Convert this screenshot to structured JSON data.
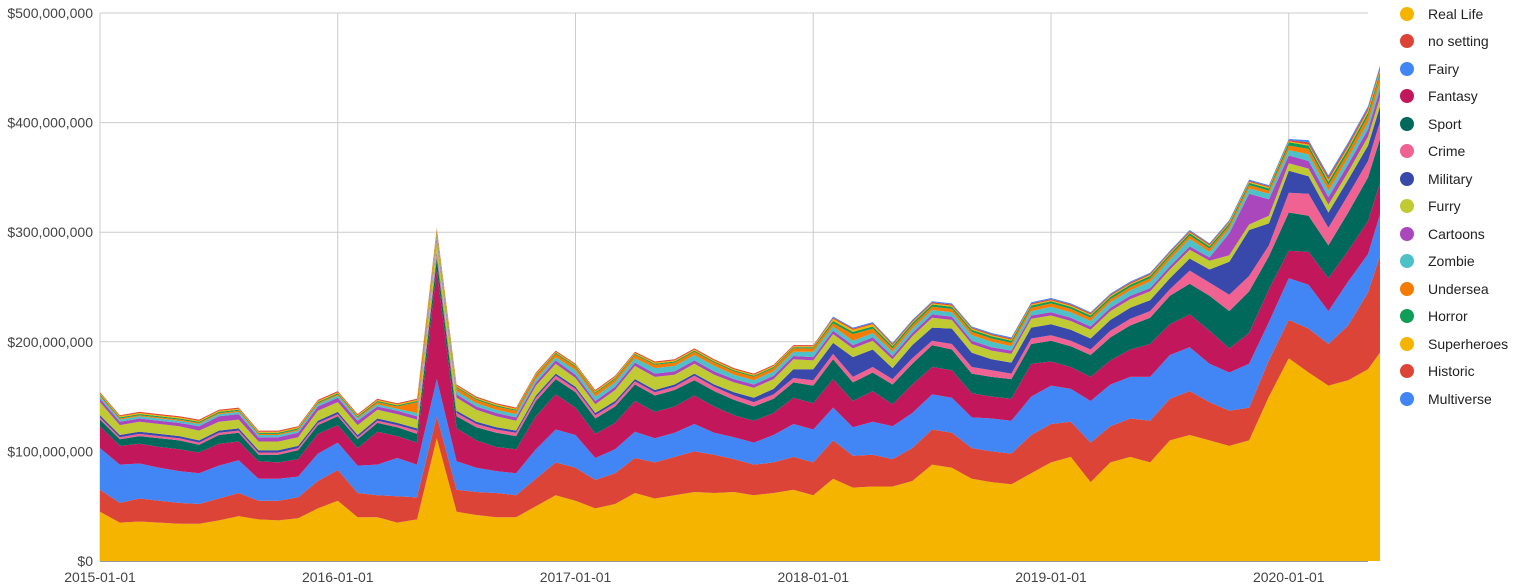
{
  "chart_data": {
    "type": "area",
    "stacked": true,
    "x_start": "2015-01-01",
    "x_end": "2020-05-01",
    "x_step": "month",
    "x_ticks": [
      "2015-01-01",
      "2016-01-01",
      "2017-01-01",
      "2018-01-01",
      "2019-01-01",
      "2020-01-01"
    ],
    "y_ticks": [
      {
        "value": 0,
        "label": "$0"
      },
      {
        "value": 100000000,
        "label": "$100,000,000"
      },
      {
        "value": 200000000,
        "label": "$200,000,000"
      },
      {
        "value": 300000000,
        "label": "$300,000,000"
      },
      {
        "value": 400000000,
        "label": "$400,000,000"
      },
      {
        "value": 500000000,
        "label": "$500,000,000"
      }
    ],
    "ylim": [
      0,
      500000000
    ],
    "grid": true,
    "legend_position": "right",
    "title": "",
    "xlabel": "",
    "ylabel": "",
    "series": [
      {
        "name": "Real Life",
        "color": "#f4b400",
        "values": [
          45,
          35,
          36,
          35,
          34,
          34,
          37,
          41,
          38,
          37,
          39,
          48,
          55,
          40,
          40,
          35,
          38,
          112,
          45,
          42,
          40,
          40,
          50,
          60,
          55,
          48,
          52,
          62,
          57,
          60,
          63,
          62,
          63,
          60,
          62,
          65,
          60,
          75,
          67,
          68,
          68,
          73,
          88,
          85,
          75,
          72,
          70,
          80,
          90,
          95,
          72,
          90,
          95,
          90,
          110,
          115,
          110,
          105,
          110,
          150,
          185,
          172,
          160,
          165,
          175,
          200
        ]
      },
      {
        "name": "no setting",
        "color": "#db4437",
        "values": [
          20,
          18,
          21,
          20,
          19,
          18,
          20,
          21,
          17,
          18,
          19,
          25,
          28,
          22,
          20,
          24,
          20,
          20,
          20,
          21,
          22,
          20,
          25,
          30,
          30,
          26,
          28,
          32,
          33,
          35,
          37,
          35,
          30,
          28,
          28,
          30,
          30,
          35,
          29,
          29,
          25,
          30,
          32,
          32,
          28,
          28,
          28,
          35,
          35,
          32,
          36,
          33,
          35,
          38,
          38,
          40,
          35,
          32,
          30,
          33,
          35,
          40,
          38,
          50,
          70,
          100
        ]
      },
      {
        "name": "Fairy",
        "color": "#4285f4",
        "values": [
          38,
          35,
          32,
          30,
          29,
          28,
          30,
          30,
          20,
          20,
          19,
          25,
          25,
          25,
          28,
          35,
          30,
          34,
          26,
          22,
          20,
          20,
          27,
          30,
          30,
          20,
          22,
          24,
          22,
          22,
          25,
          20,
          20,
          20,
          25,
          30,
          30,
          30,
          26,
          30,
          30,
          32,
          32,
          32,
          28,
          30,
          30,
          35,
          35,
          30,
          38,
          38,
          38,
          40,
          40,
          40,
          35,
          35,
          40,
          35,
          38,
          40,
          30,
          40,
          35,
          40
        ]
      },
      {
        "name": "Fantasy",
        "color": "#c2185b",
        "values": [
          20,
          17,
          18,
          19,
          20,
          19,
          20,
          17,
          16,
          15,
          16,
          18,
          16,
          16,
          30,
          20,
          20,
          100,
          30,
          25,
          22,
          22,
          30,
          32,
          25,
          22,
          24,
          28,
          24,
          24,
          26,
          24,
          20,
          20,
          20,
          24,
          24,
          26,
          24,
          28,
          20,
          26,
          25,
          25,
          22,
          20,
          20,
          30,
          22,
          20,
          22,
          22,
          25,
          30,
          28,
          30,
          30,
          22,
          28,
          30,
          25,
          30,
          30,
          28,
          30,
          28
        ]
      },
      {
        "name": "Sport",
        "color": "#00695c",
        "values": [
          6,
          6,
          7,
          8,
          8,
          7,
          8,
          8,
          6,
          7,
          8,
          8,
          8,
          8,
          8,
          8,
          8,
          10,
          11,
          12,
          13,
          12,
          14,
          14,
          14,
          14,
          15,
          15,
          15,
          15,
          14,
          14,
          14,
          13,
          13,
          14,
          16,
          18,
          17,
          17,
          18,
          19,
          20,
          19,
          18,
          18,
          18,
          18,
          19,
          19,
          20,
          21,
          22,
          24,
          26,
          28,
          32,
          34,
          38,
          30,
          35,
          33,
          30,
          35,
          40,
          40
        ]
      },
      {
        "name": "Crime",
        "color": "#f06292",
        "values": [
          2,
          2,
          2,
          2,
          2,
          2,
          2,
          2,
          2,
          2,
          2,
          2,
          2,
          2,
          2,
          2,
          3,
          3,
          3,
          3,
          3,
          3,
          3,
          3,
          3,
          3,
          3,
          3,
          3,
          3,
          4,
          4,
          4,
          4,
          4,
          4,
          5,
          5,
          5,
          5,
          5,
          5,
          4,
          5,
          6,
          6,
          5,
          5,
          5,
          5,
          5,
          6,
          6,
          6,
          6,
          12,
          12,
          15,
          14,
          10,
          18,
          20,
          16,
          16,
          15,
          16
        ]
      },
      {
        "name": "Military",
        "color": "#3949ab",
        "values": [
          2,
          2,
          2,
          2,
          2,
          2,
          2,
          2,
          2,
          2,
          2,
          2,
          2,
          2,
          2,
          2,
          2,
          2,
          2,
          2,
          2,
          2,
          2,
          2,
          2,
          2,
          2,
          2,
          2,
          2,
          2,
          2,
          3,
          4,
          5,
          8,
          10,
          10,
          18,
          16,
          10,
          12,
          12,
          14,
          13,
          10,
          10,
          10,
          10,
          10,
          10,
          10,
          10,
          10,
          10,
          11,
          12,
          30,
          42,
          20,
          20,
          16,
          14,
          14,
          14,
          14
        ]
      },
      {
        "name": "Furry",
        "color": "#c0ca33",
        "values": [
          12,
          9,
          9,
          9,
          9,
          9,
          8,
          8,
          8,
          8,
          8,
          9,
          9,
          9,
          8,
          8,
          8,
          10,
          12,
          11,
          10,
          9,
          9,
          9,
          8,
          8,
          10,
          12,
          12,
          9,
          9,
          9,
          9,
          9,
          9,
          9,
          8,
          8,
          8,
          8,
          8,
          8,
          9,
          8,
          8,
          8,
          8,
          8,
          8,
          8,
          8,
          8,
          8,
          8,
          8,
          8,
          8,
          6,
          5,
          7,
          7,
          7,
          7,
          7,
          8,
          8
        ]
      },
      {
        "name": "Cartoons",
        "color": "#ab47bc",
        "values": [
          3,
          3,
          3,
          3,
          3,
          4,
          5,
          5,
          4,
          4,
          4,
          4,
          4,
          4,
          3,
          3,
          3,
          3,
          3,
          3,
          3,
          3,
          3,
          3,
          3,
          3,
          3,
          3,
          3,
          3,
          3,
          3,
          3,
          3,
          3,
          3,
          3,
          3,
          3,
          3,
          3,
          3,
          3,
          3,
          3,
          3,
          3,
          3,
          3,
          3,
          3,
          3,
          3,
          3,
          3,
          3,
          3,
          20,
          28,
          15,
          7,
          7,
          7,
          7,
          7,
          8
        ]
      },
      {
        "name": "Zombie",
        "color": "#4dc0c8",
        "values": [
          2,
          2,
          2,
          2,
          2,
          2,
          2,
          2,
          2,
          2,
          2,
          2,
          2,
          2,
          2,
          2,
          3,
          3,
          3,
          3,
          3,
          3,
          3,
          3,
          4,
          4,
          4,
          4,
          5,
          5,
          5,
          5,
          4,
          4,
          4,
          4,
          5,
          4,
          4,
          4,
          4,
          4,
          4,
          4,
          5,
          5,
          4,
          4,
          5,
          5,
          5,
          5,
          5,
          6,
          6,
          7,
          5,
          4,
          5,
          5,
          5,
          6,
          6,
          6,
          6,
          6
        ]
      },
      {
        "name": "Undersea",
        "color": "#f57c00",
        "values": [
          1,
          1,
          1,
          1,
          1,
          1,
          1,
          1,
          1,
          1,
          1,
          1,
          1,
          1,
          2,
          2,
          10,
          4,
          3,
          3,
          3,
          3,
          3,
          3,
          3,
          3,
          3,
          3,
          3,
          3,
          3,
          3,
          3,
          3,
          3,
          3,
          3,
          3,
          6,
          4,
          3,
          3,
          3,
          3,
          3,
          3,
          3,
          3,
          3,
          3,
          3,
          3,
          3,
          3,
          3,
          3,
          3,
          3,
          3,
          3,
          4,
          5,
          5,
          5,
          6,
          7
        ]
      },
      {
        "name": "Horror",
        "color": "#0f9d58",
        "values": [
          1,
          1,
          1,
          1,
          1,
          1,
          1,
          1,
          1,
          1,
          1,
          1,
          1,
          1,
          1,
          1,
          1,
          1,
          1,
          1,
          1,
          1,
          1,
          1,
          1,
          1,
          1,
          1,
          1,
          1,
          1,
          1,
          1,
          1,
          1,
          1,
          1,
          2,
          2,
          2,
          2,
          2,
          2,
          2,
          2,
          2,
          2,
          2,
          2,
          2,
          2,
          2,
          2,
          2,
          2,
          2,
          2,
          2,
          2,
          2,
          3,
          3,
          3,
          3,
          3,
          3
        ]
      },
      {
        "name": "Superheroes",
        "color": "#f4b400",
        "values": [
          1,
          1,
          1,
          1,
          1,
          1,
          1,
          1,
          1,
          1,
          1,
          1,
          1,
          1,
          1,
          1,
          1,
          1,
          1,
          1,
          1,
          1,
          1,
          1,
          1,
          1,
          1,
          1,
          1,
          1,
          1,
          1,
          1,
          1,
          1,
          1,
          1,
          2,
          2,
          2,
          1,
          1,
          1,
          1,
          1,
          1,
          1,
          1,
          1,
          1,
          1,
          1,
          1,
          1,
          1,
          1,
          1,
          1,
          1,
          1,
          1,
          1,
          2,
          2,
          2,
          2
        ]
      },
      {
        "name": "Historic",
        "color": "#db4437",
        "values": [
          1,
          1,
          1,
          1,
          1,
          1,
          1,
          1,
          1,
          1,
          1,
          1,
          1,
          1,
          1,
          1,
          1,
          1,
          1,
          1,
          1,
          1,
          1,
          1,
          1,
          1,
          1,
          1,
          1,
          1,
          1,
          1,
          1,
          1,
          1,
          1,
          1,
          1,
          1,
          1,
          1,
          1,
          1,
          1,
          1,
          1,
          1,
          1,
          1,
          1,
          1,
          1,
          1,
          1,
          1,
          1,
          1,
          1,
          1,
          1,
          1,
          2,
          2,
          2,
          2,
          2
        ]
      },
      {
        "name": "Multiverse",
        "color": "#4285f4",
        "values": [
          0,
          0,
          0,
          0,
          0,
          0,
          0,
          0,
          0,
          0,
          0,
          0,
          0,
          0,
          0,
          0,
          0,
          0,
          0,
          0,
          0,
          0,
          0,
          0,
          0,
          0,
          0,
          0,
          0,
          0,
          0,
          0,
          0,
          0,
          0,
          0,
          0,
          1,
          1,
          1,
          1,
          1,
          1,
          1,
          1,
          1,
          1,
          1,
          1,
          1,
          1,
          1,
          1,
          1,
          1,
          1,
          1,
          1,
          1,
          1,
          1,
          2,
          2,
          2,
          2,
          2
        ]
      }
    ],
    "value_unit_multiplier": 1000000
  }
}
